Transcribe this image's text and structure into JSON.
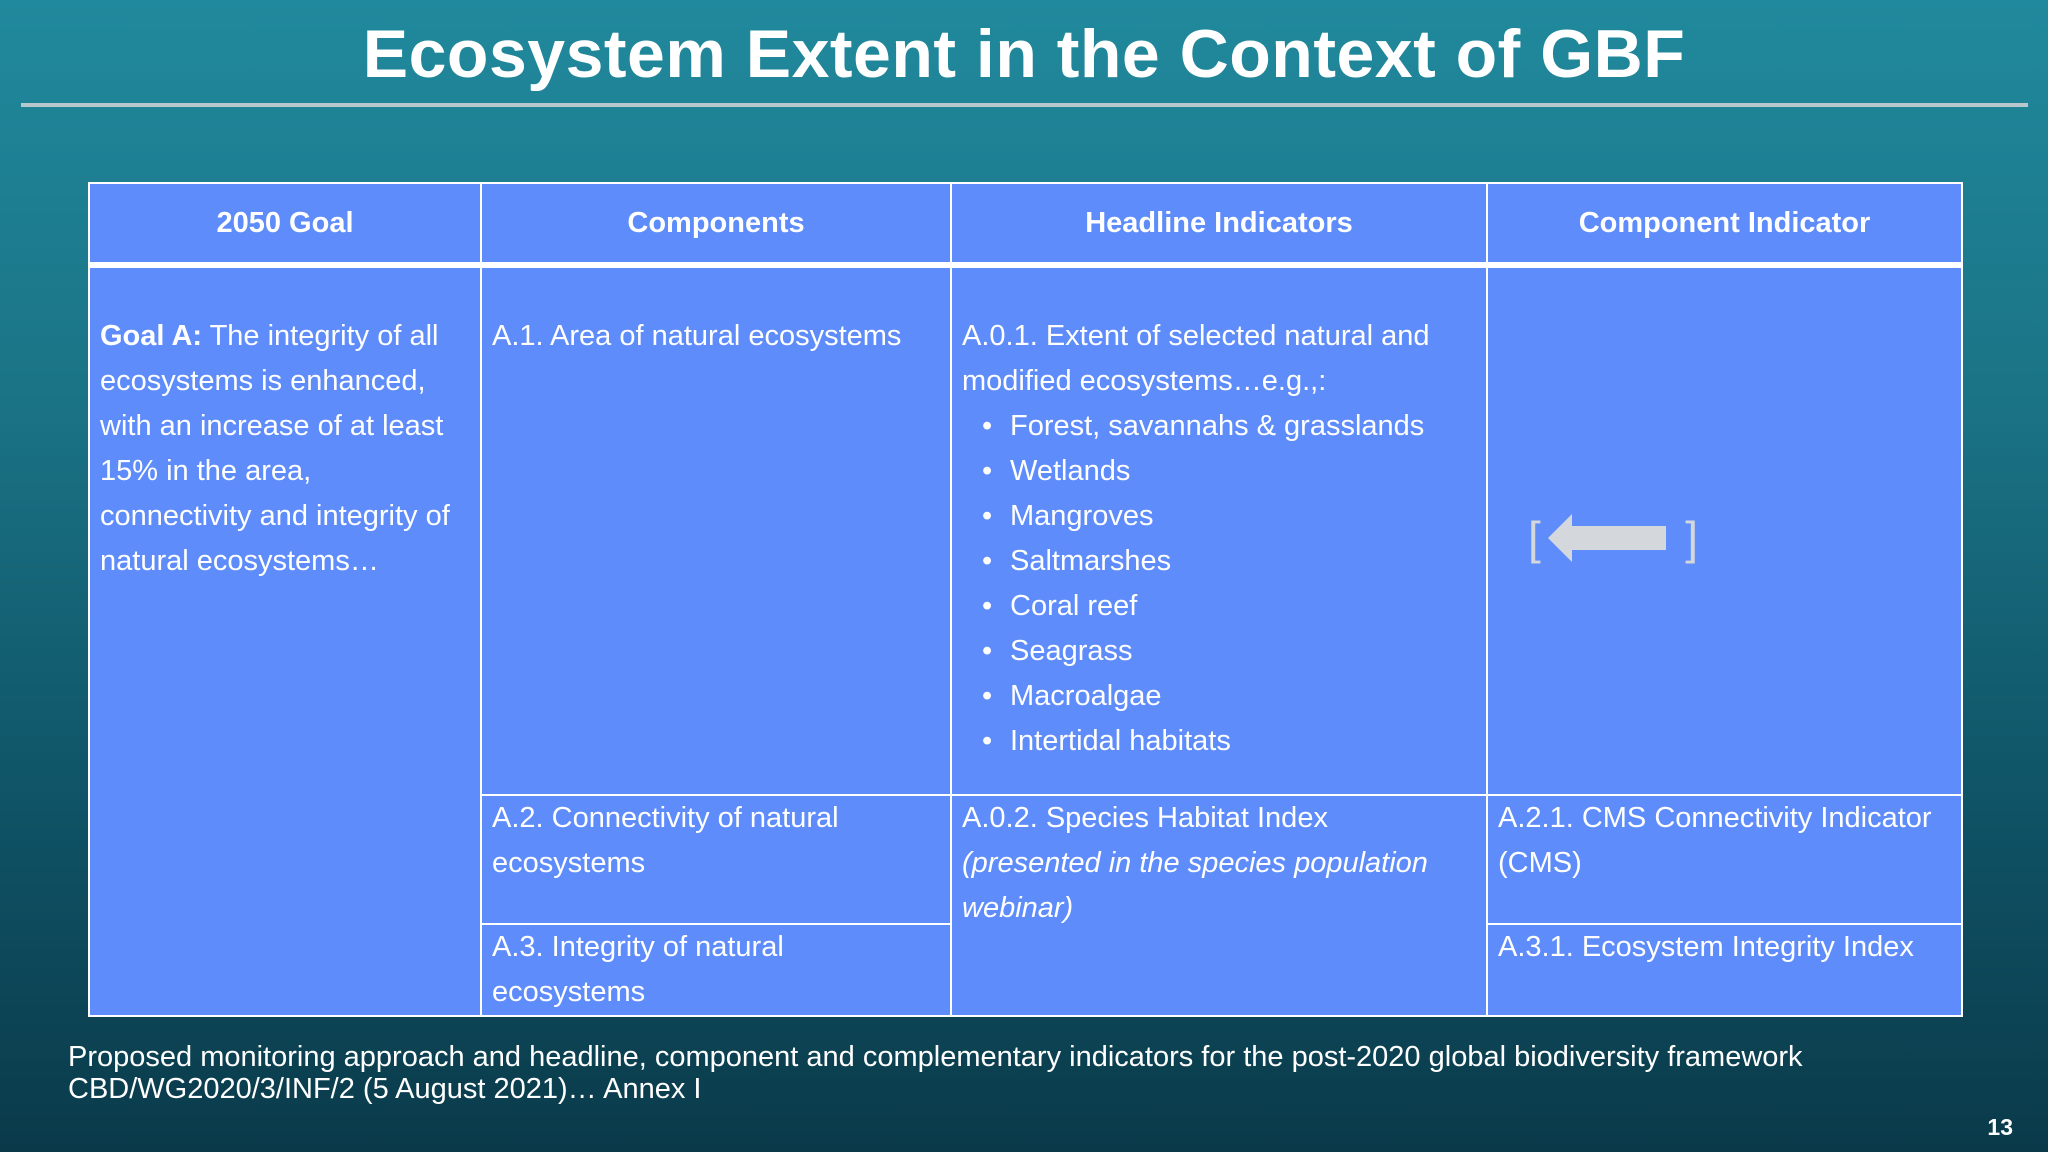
{
  "slide": {
    "title": "Ecosystem Extent in the Context of GBF",
    "page_number": "13"
  },
  "table": {
    "headers": [
      "2050 Goal",
      "Components",
      "Headline Indicators",
      "Component Indicator"
    ],
    "goal": {
      "label": "Goal A:",
      "text": " The integrity of all ecosystems is enhanced, with an increase of at least 15% in the area, connectivity and integrity of natural ecosystems…"
    },
    "components": [
      "A.1. Area of natural ecosystems",
      "A.2. Connectivity of natural ecosystems",
      "A.3. Integrity of natural ecosystems"
    ],
    "headline_indicators": {
      "a01": {
        "text": "A.0.1. Extent of selected natural and modified ecosystems…e.g.,:",
        "items": [
          "Forest, savannahs & grasslands",
          "Wetlands",
          "Mangroves",
          "Saltmarshes",
          "Coral reef",
          "Seagrass",
          "Macroalgae",
          "Intertidal habitats"
        ]
      },
      "a02": {
        "text": "A.0.2. Species Habitat Index",
        "note": "(presented in the species population webinar)"
      }
    },
    "component_indicators": {
      "a1_bracket_left": "[",
      "a1_bracket_right": "]",
      "a1_icon": "left-arrow-icon",
      "a21": "A.2.1. CMS Connectivity Indicator (CMS)",
      "a31": "A.3.1. Ecosystem Integrity Index"
    }
  },
  "source": {
    "line1": "Proposed monitoring approach and headline, component and complementary indicators for the post-2020 global biodiversity framework",
    "line2": "CBD/WG2020/3/INF/2 (5 August 2021)… Annex I"
  },
  "colors": {
    "table_fill": "#5e8cfb",
    "background_top": "#21899d",
    "background_bottom": "#0a3a4a",
    "arrow": "#d4d8dc"
  }
}
